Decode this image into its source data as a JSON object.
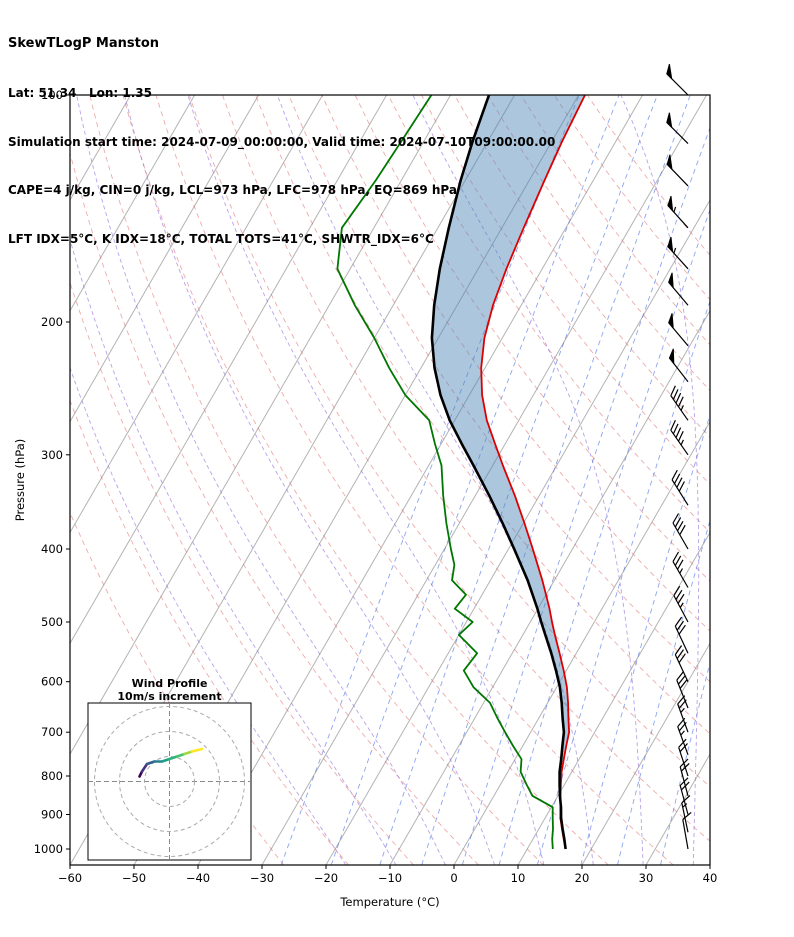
{
  "header": {
    "title": "SkewTLogP Manston",
    "location": "Lat: 51.34   Lon: 1.35",
    "times": "Simulation start time: 2024-07-09_00:00:00, Valid time: 2024-07-10T09:00:00.00",
    "indices1": "CAPE=4 j/kg, CIN=0 j/kg, LCL=973 hPa, LFC=978 hPa, EQ=869 hPa",
    "indices2": "LFT IDX=5°C, K IDX=18°C, TOTAL TOTS=41°C, SHWTR_IDX=6°C"
  },
  "chart_data": {
    "type": "skewt-logp",
    "title": "SkewTLogP Manston",
    "xlabel": "Temperature (°C)",
    "ylabel": "Pressure (hPa)",
    "x_ticks": [
      -60,
      -50,
      -40,
      -30,
      -20,
      -10,
      0,
      10,
      20,
      30,
      40
    ],
    "y_ticks": [
      100,
      200,
      300,
      400,
      500,
      600,
      700,
      800,
      900,
      1000
    ],
    "t_range": [
      -60,
      40
    ],
    "p_range": [
      100,
      1050
    ],
    "skew_rotation_deg": 30,
    "sounding": {
      "pressure_hpa": [
        1000,
        970,
        940,
        910,
        880,
        850,
        820,
        790,
        760,
        730,
        700,
        670,
        640,
        610,
        580,
        550,
        520,
        500,
        480,
        460,
        440,
        420,
        400,
        370,
        340,
        310,
        290,
        270,
        250,
        230,
        210,
        190,
        170,
        150,
        130,
        115,
        100
      ],
      "temperature_c": [
        16.0,
        14.8,
        13.6,
        12.4,
        11.4,
        10.4,
        9.4,
        8.4,
        7.6,
        6.8,
        6.0,
        4.6,
        3.2,
        1.6,
        -0.4,
        -2.6,
        -5.0,
        -6.6,
        -8.2,
        -10.0,
        -11.9,
        -14.0,
        -16.2,
        -19.8,
        -23.8,
        -28.4,
        -31.6,
        -35.0,
        -38.0,
        -40.6,
        -42.8,
        -44.4,
        -45.6,
        -46.6,
        -47.6,
        -48.4,
        -49.0
      ],
      "dewpoint_c": [
        14.0,
        13.0,
        12.2,
        11.2,
        10.2,
        6.0,
        4.0,
        2.0,
        1.0,
        -1.5,
        -4.0,
        -6.5,
        -9.0,
        -13.0,
        -16.0,
        -15.5,
        -20.0,
        -19.0,
        -23.0,
        -22.5,
        -26.0,
        -27.0,
        -29.0,
        -32.0,
        -35.0,
        -38.0,
        -41.0,
        -44.0,
        -50.0,
        -55.0,
        -60.0,
        -66.0,
        -72.0,
        -75.0,
        -74.0,
        -73.5,
        -73.0
      ],
      "parcel_c": [
        16.0,
        14.9,
        13.7,
        12.5,
        11.5,
        10.3,
        9.2,
        8.1,
        7.2,
        6.2,
        5.2,
        3.7,
        2.2,
        0.5,
        -1.6,
        -3.9,
        -6.5,
        -8.3,
        -10.1,
        -12.1,
        -14.2,
        -16.6,
        -19.1,
        -23.2,
        -27.8,
        -33.0,
        -36.8,
        -40.8,
        -44.5,
        -47.9,
        -51.0,
        -53.6,
        -56.0,
        -58.3,
        -60.7,
        -62.4,
        -64.0
      ]
    },
    "shading": {
      "between": [
        "parcel",
        "temperature"
      ],
      "max_pressure_hpa": 880,
      "color": "rgba(70,130,180,0.45)"
    },
    "background_lines": {
      "isotherms_c": {
        "from": -130,
        "to": 40,
        "step": 10,
        "color": "#b3b3b3"
      },
      "dry_adiabats_theta_c": [
        -30,
        -20,
        -10,
        0,
        10,
        20,
        30,
        40,
        50,
        60,
        70,
        80,
        90,
        100,
        110,
        120,
        130,
        140,
        150,
        160
      ],
      "dry_adiabat_color": "#e06666",
      "moist_adiabats_t0_c": [
        -20,
        -12,
        -4,
        4,
        12,
        20,
        28,
        36
      ],
      "moist_adiabat_color": "#9370db",
      "mixing_ratio_gkg": [
        0.4,
        0.8,
        1.5,
        2.5,
        4,
        6,
        9,
        14,
        20,
        30
      ],
      "mixing_ratio_color": "#4169e1"
    },
    "series_colors": {
      "temperature": "#dd0000",
      "dewpoint": "#007700",
      "parcel": "#000000"
    },
    "wind_barbs": {
      "pressure_hpa": [
        1000,
        950,
        900,
        850,
        800,
        750,
        700,
        650,
        600,
        550,
        500,
        450,
        400,
        350,
        300,
        270,
        240,
        215,
        190,
        170,
        150,
        132,
        116,
        100
      ],
      "speed_kt": [
        12,
        15,
        18,
        20,
        22,
        25,
        25,
        28,
        30,
        32,
        35,
        35,
        38,
        40,
        45,
        45,
        48,
        50,
        52,
        55,
        55,
        52,
        50,
        50
      ],
      "direction_deg": [
        350,
        348,
        345,
        345,
        342,
        340,
        340,
        338,
        335,
        335,
        332,
        330,
        330,
        328,
        325,
        325,
        322,
        320,
        320,
        318,
        318,
        316,
        315,
        315
      ]
    },
    "hodograph": {
      "title": "Wind Profile",
      "subtitle": "10m/s increment",
      "ring_interval_ms": 10,
      "rings_ms": [
        10,
        20,
        30
      ],
      "trace_uv_ms": [
        [
          -12,
          2
        ],
        [
          -11,
          4
        ],
        [
          -9,
          7
        ],
        [
          -6,
          8
        ],
        [
          -3,
          8
        ],
        [
          0,
          9
        ],
        [
          3,
          10
        ],
        [
          6,
          11
        ],
        [
          9,
          12
        ],
        [
          13,
          13
        ]
      ],
      "trace_colors": [
        "#440154",
        "#46327e",
        "#365c8d",
        "#277f8e",
        "#1fa187",
        "#2db27d",
        "#4ac16d",
        "#a0da39",
        "#fde725"
      ]
    }
  }
}
